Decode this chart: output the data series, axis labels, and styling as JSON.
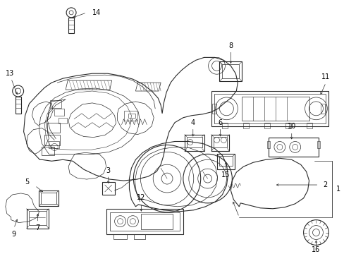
{
  "background_color": "#ffffff",
  "line_color": "#2a2a2a",
  "label_color": "#000000",
  "fig_width": 4.89,
  "fig_height": 3.6,
  "dpi": 100,
  "label_fs": 7.0
}
